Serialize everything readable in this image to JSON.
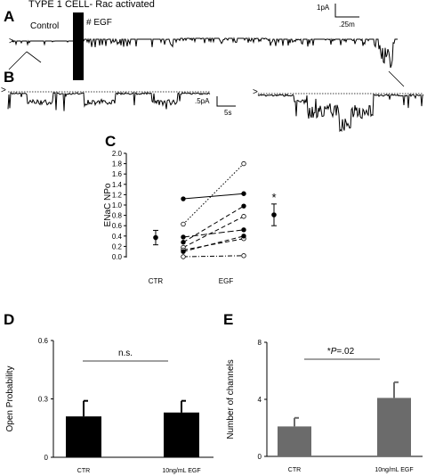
{
  "panel_letters": {
    "a": "A",
    "b": "B",
    "c": "C",
    "d": "D",
    "e": "E"
  },
  "traces": {
    "title": "TYPE 1 CELL- Rac activated",
    "control_label": "Control",
    "egf_label": "# EGF",
    "scale_a_current": "1pA",
    "scale_a_time": ".25m",
    "scale_b_current": ".5pA",
    "scale_b_time": "5s",
    "arrow_glyph": ">"
  },
  "chart_data": [
    {
      "panel": "C",
      "type": "scatter",
      "ylabel": "ENaC NPo",
      "categories": [
        "CTR",
        "EGF"
      ],
      "ylim": [
        0,
        2.0
      ],
      "yticks": [
        "0.0",
        "0.2",
        "0.4",
        "0.6",
        "0.8",
        "1.0",
        "1.2",
        "1.4",
        "1.6",
        "1.8",
        "2.0"
      ],
      "ctr_mean": 0.37,
      "ctr_err": 0.14,
      "egf_mean": 0.81,
      "egf_err": 0.21,
      "annotation": "*",
      "pairs": [
        {
          "before": 1.12,
          "after": 1.22,
          "marker": "filled",
          "dash": "solid"
        },
        {
          "before": 0.63,
          "after": 1.8,
          "marker": "open",
          "dash": "dot"
        },
        {
          "before": 0.28,
          "after": 0.98,
          "marker": "filled",
          "dash": "dash"
        },
        {
          "before": 0.18,
          "after": 0.78,
          "marker": "open",
          "dash": "dash"
        },
        {
          "before": 0.38,
          "after": 0.52,
          "marker": "filled",
          "dash": "longdash"
        },
        {
          "before": 0.13,
          "after": 0.35,
          "marker": "open",
          "dash": "dash"
        },
        {
          "before": 0.1,
          "after": 0.4,
          "marker": "filled",
          "dash": "dash"
        },
        {
          "before": 0.0,
          "after": 0.02,
          "marker": "open",
          "dash": "dashdot"
        }
      ]
    },
    {
      "panel": "D",
      "type": "bar",
      "ylabel": "Open Probability",
      "categories": [
        "CTR",
        "10ng/mL EGF"
      ],
      "values": [
        0.21,
        0.23
      ],
      "errors": [
        0.08,
        0.06
      ],
      "ylim": [
        0,
        0.6
      ],
      "yticks": [
        "0",
        "0.3",
        "0.6"
      ],
      "bar_color": "#000000",
      "annotation": "n.s."
    },
    {
      "panel": "E",
      "type": "bar",
      "ylabel": "Number of channels",
      "categories": [
        "CTR",
        "10ng/mL EGF"
      ],
      "values": [
        2.1,
        4.1
      ],
      "errors": [
        0.6,
        1.1
      ],
      "ylim": [
        0,
        8
      ],
      "yticks": [
        "0",
        "4",
        "8"
      ],
      "bar_color": "#6b6b6b",
      "annotation_prefix": "*",
      "annotation_p": "P",
      "annotation_value": "=.02"
    }
  ]
}
